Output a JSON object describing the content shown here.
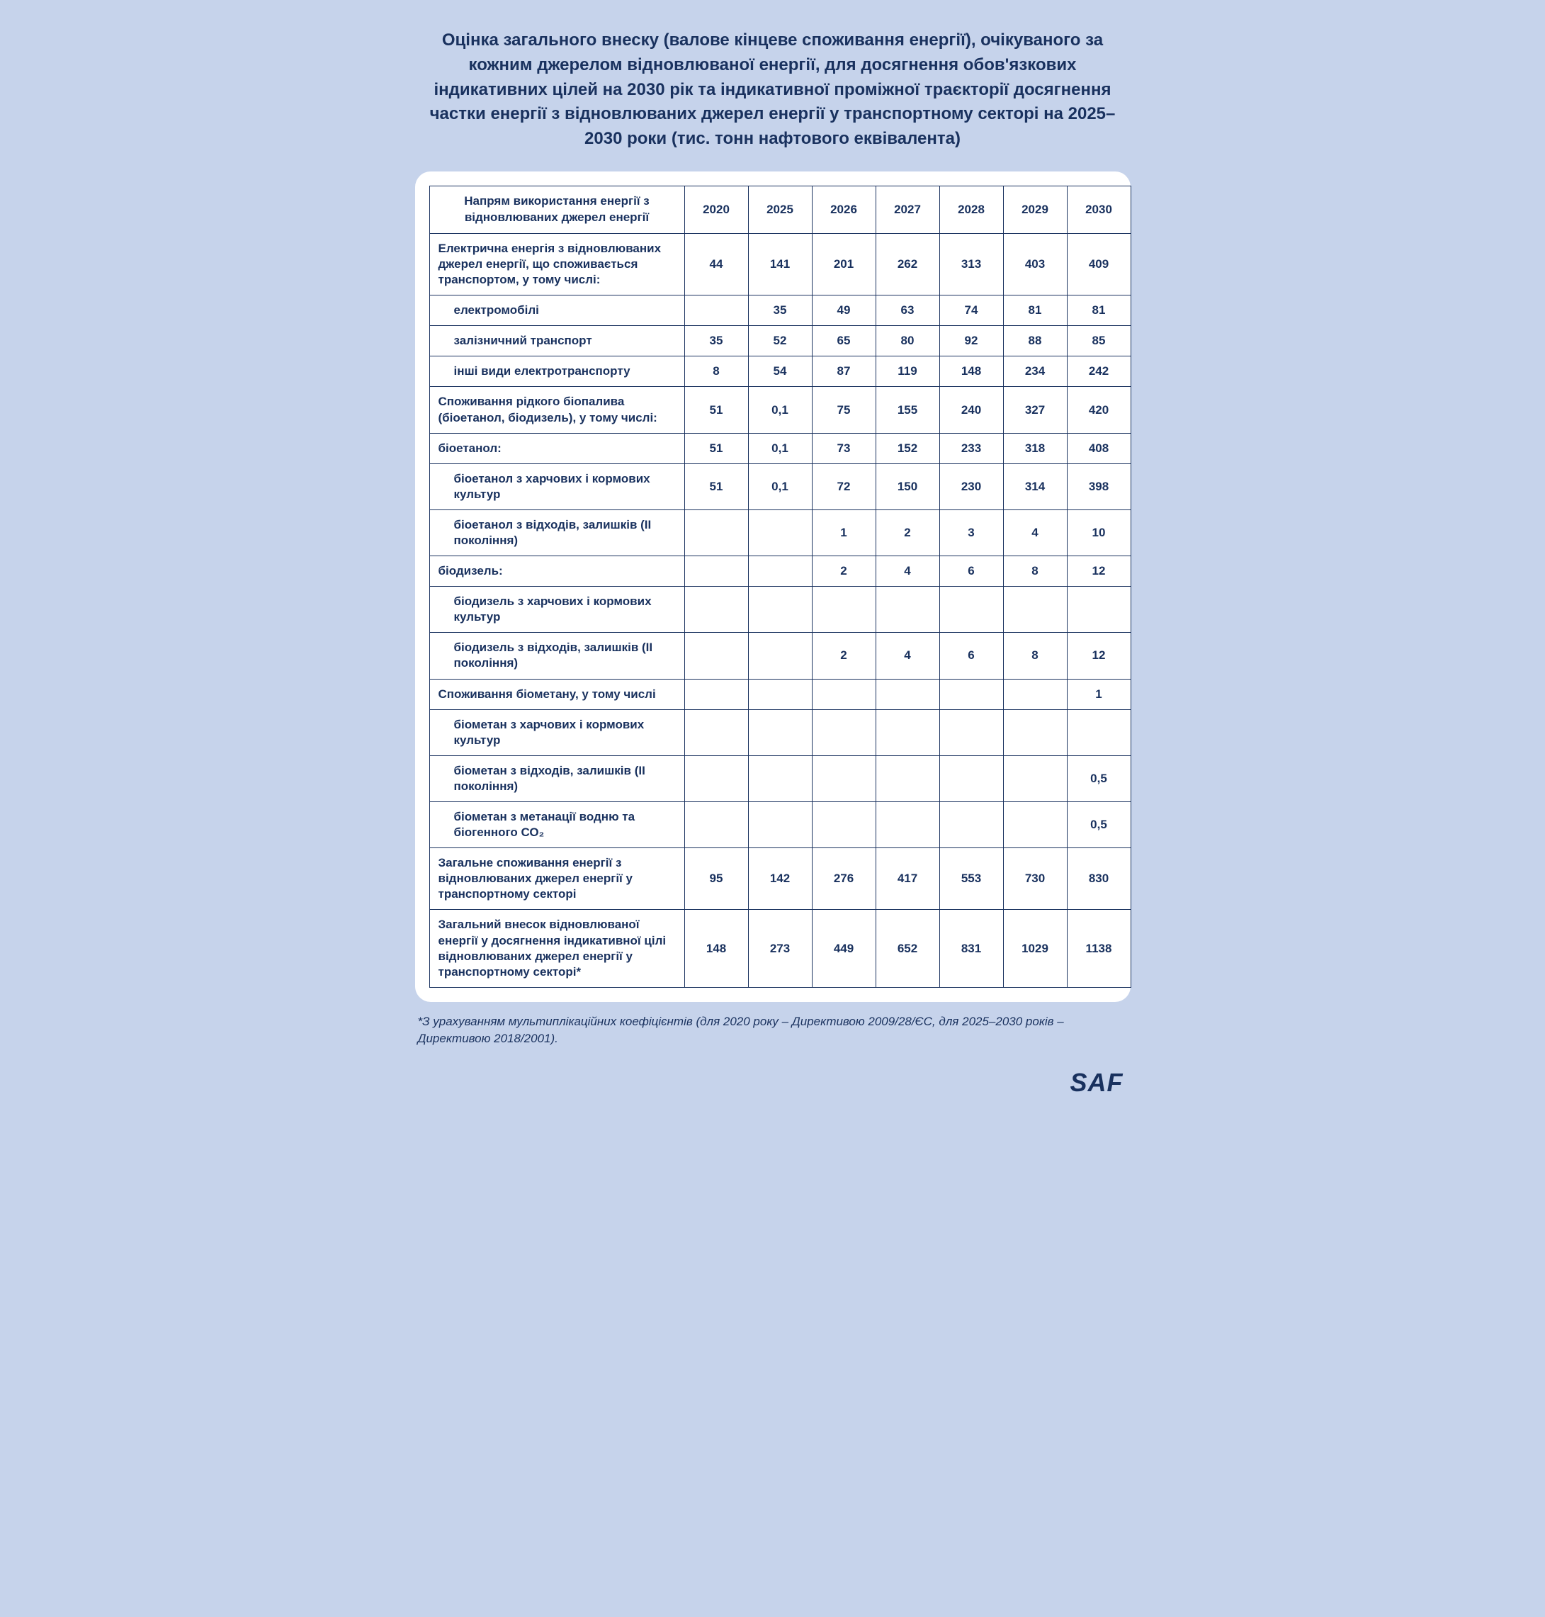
{
  "colors": {
    "page_bg": "#c6d3eb",
    "panel_bg": "#ffffff",
    "text": "#19315e",
    "border": "#19315e"
  },
  "title": "Оцінка загального внеску (валове кінцеве споживання енергії), очікуваного за кожним джерелом відновлюваної енергії, для досягнення обов'язкових індикативних цілей на 2030 рік та індикативної проміжної траєкторії досягнення частки енергії з відновлюваних джерел енергії у транспортному секторі на 2025–2030 роки  (тис. тонн нафтового еквівалента)",
  "header_label": "Напрям використання енергії\nз відновлюваних джерел енергії",
  "years": [
    "2020",
    "2025",
    "2026",
    "2027",
    "2028",
    "2029",
    "2030"
  ],
  "rows": [
    {
      "label": "Електрична енергія з відновлюваних джерел енергії, що споживається транспортом, у тому числі:",
      "indent": 0,
      "vals": [
        "44",
        "141",
        "201",
        "262",
        "313",
        "403",
        "409"
      ]
    },
    {
      "label": "електромобілі",
      "indent": 1,
      "vals": [
        "",
        "35",
        "49",
        "63",
        "74",
        "81",
        "81"
      ]
    },
    {
      "label": "залізничний транспорт",
      "indent": 1,
      "vals": [
        "35",
        "52",
        "65",
        "80",
        "92",
        "88",
        "85"
      ]
    },
    {
      "label": "інші види  електротранспорту",
      "indent": 1,
      "vals": [
        "8",
        "54",
        "87",
        "119",
        "148",
        "234",
        "242"
      ]
    },
    {
      "label": "Споживання рідкого біопалива (біоетанол, біодизель), у тому числі:",
      "indent": 0,
      "vals": [
        "51",
        "0,1",
        "75",
        "155",
        "240",
        "327",
        "420"
      ]
    },
    {
      "label": "біоетанол:",
      "indent": 0,
      "vals": [
        "51",
        "0,1",
        "73",
        "152",
        "233",
        "318",
        "408"
      ]
    },
    {
      "label": "біоетанол з харчових і кормових культур",
      "indent": 1,
      "vals": [
        "51",
        "0,1",
        "72",
        "150",
        "230",
        "314",
        "398"
      ]
    },
    {
      "label": "біоетанол з відходів,  залишків (ІІ покоління)",
      "indent": 1,
      "vals": [
        "",
        "",
        "1",
        "2",
        "3",
        "4",
        "10"
      ]
    },
    {
      "label": "біодизель:",
      "indent": 0,
      "vals": [
        "",
        "",
        "2",
        "4",
        "6",
        "8",
        "12"
      ]
    },
    {
      "label": "біодизель з харчових і кормових культур",
      "indent": 1,
      "vals": [
        "",
        "",
        "",
        "",
        "",
        "",
        ""
      ]
    },
    {
      "label": "біодизель з відходів, залишків (ІІ покоління)",
      "indent": 1,
      "vals": [
        "",
        "",
        "2",
        "4",
        "6",
        "8",
        "12"
      ]
    },
    {
      "label": "Споживання біометану, у тому числі",
      "indent": 0,
      "vals": [
        "",
        "",
        "",
        "",
        "",
        "",
        "1"
      ]
    },
    {
      "label": "біометан з харчових і кормових культур",
      "indent": 1,
      "vals": [
        "",
        "",
        "",
        "",
        "",
        "",
        ""
      ]
    },
    {
      "label": "біометан з відходів, залишків (ІІ покоління)",
      "indent": 1,
      "vals": [
        "",
        "",
        "",
        "",
        "",
        "",
        "0,5"
      ]
    },
    {
      "label": "біометан з метанації водню та біогенного СО₂",
      "indent": 1,
      "vals": [
        "",
        "",
        "",
        "",
        "",
        "",
        "0,5"
      ]
    },
    {
      "label": "Загальне споживання енергії з відновлюваних джерел енергії у транспортному секторі",
      "indent": 0,
      "vals": [
        "95",
        "142",
        "276",
        "417",
        "553",
        "730",
        "830"
      ]
    },
    {
      "label": "Загальний внесок відновлюваної енергії у досягнення індикативної цілі відновлюваних джерел енергії у транспортному секторі*",
      "indent": 0,
      "vals": [
        "148",
        "273",
        "449",
        "652",
        "831",
        "1029",
        "1138"
      ]
    }
  ],
  "footnote": "*З урахуванням мультиплікаційних коефіцієнтів (для 2020 року – Директивою 2009/28/ЄС, для 2025–2030 років – Директивою 2018/2001).",
  "logo": "SAF"
}
